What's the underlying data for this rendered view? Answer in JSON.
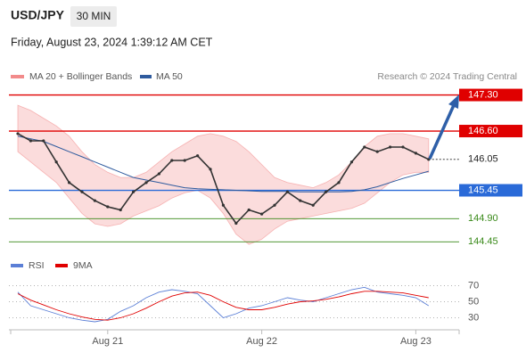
{
  "header": {
    "symbol": "USD/JPY",
    "timeframe": "30 MIN",
    "datetime": "Friday, August 23, 2024 1:39:12 AM CET"
  },
  "chart_data": [
    {
      "type": "line",
      "attribution": "Research © 2024 Trading Central",
      "ylim": [
        144.3,
        147.5
      ],
      "price": {
        "color": "#333333",
        "values": [
          146.55,
          146.41,
          146.41,
          146.0,
          145.6,
          145.42,
          145.25,
          145.13,
          145.07,
          145.42,
          145.6,
          145.77,
          146.03,
          146.03,
          146.12,
          145.86,
          145.16,
          144.81,
          145.07,
          144.99,
          145.16,
          145.42,
          145.25,
          145.16,
          145.42,
          145.6,
          146.0,
          146.29,
          146.2,
          146.29,
          146.29,
          146.17,
          146.05
        ]
      },
      "bands": {
        "name": "MA 20 + Bollinger Bands",
        "color": "#f28b8b",
        "upper": [
          147.1,
          147.0,
          146.85,
          146.7,
          146.5,
          146.2,
          145.95,
          145.8,
          145.7,
          145.7,
          145.8,
          146.0,
          146.2,
          146.35,
          146.5,
          146.55,
          146.5,
          146.4,
          146.2,
          145.95,
          145.7,
          145.6,
          145.55,
          145.5,
          145.6,
          145.75,
          146.0,
          146.3,
          146.5,
          146.55,
          146.55,
          146.5,
          146.45
        ],
        "lower": [
          146.2,
          146.0,
          145.8,
          145.6,
          145.3,
          145.0,
          144.8,
          144.75,
          144.8,
          144.95,
          145.05,
          145.15,
          145.3,
          145.4,
          145.45,
          145.3,
          145.0,
          144.6,
          144.4,
          144.5,
          144.7,
          144.85,
          144.9,
          144.95,
          145.0,
          145.05,
          145.1,
          145.2,
          145.4,
          145.6,
          145.75,
          145.8,
          145.8
        ]
      },
      "series": [
        {
          "name": "MA 50",
          "color": "#2f5b9e",
          "values": [
            146.5,
            146.45,
            146.4,
            146.3,
            146.2,
            146.1,
            146.0,
            145.9,
            145.8,
            145.7,
            145.65,
            145.6,
            145.55,
            145.5,
            145.48,
            145.47,
            145.46,
            145.45,
            145.44,
            145.43,
            145.43,
            145.43,
            145.42,
            145.42,
            145.42,
            145.42,
            145.43,
            145.46,
            145.52,
            145.6,
            145.68,
            145.75,
            145.82
          ]
        }
      ],
      "levels": [
        {
          "value": 147.3,
          "label": "147.30",
          "color": "#e00000",
          "boxed": true,
          "dotted": false
        },
        {
          "value": 146.6,
          "label": "146.60",
          "color": "#e00000",
          "boxed": true,
          "dotted": false
        },
        {
          "value": 146.05,
          "label": "146.05",
          "color": "#222222",
          "boxed": false,
          "dotted": true
        },
        {
          "value": 145.45,
          "label": "145.45",
          "color": "#2a6ad8",
          "boxed": true,
          "dotted": false
        },
        {
          "value": 144.9,
          "label": "144.90",
          "color": "#3a8a1a",
          "boxed": false,
          "dotted": false
        },
        {
          "value": 144.45,
          "label": "144.45",
          "color": "#3a8a1a",
          "boxed": false,
          "dotted": false
        }
      ]
    },
    {
      "type": "line",
      "ylim": [
        15,
        85
      ],
      "yticks": [
        30,
        50,
        70
      ],
      "categories": [
        null,
        null,
        null,
        null,
        null,
        null,
        null,
        "Aug 21",
        null,
        null,
        null,
        null,
        null,
        null,
        null,
        null,
        null,
        null,
        null,
        "Aug 22",
        null,
        null,
        null,
        null,
        null,
        null,
        null,
        null,
        null,
        null,
        null,
        "Aug 23",
        null
      ],
      "series": [
        {
          "name": "RSI",
          "color": "#5b7fd6",
          "values": [
            62,
            45,
            40,
            35,
            30,
            27,
            25,
            28,
            38,
            45,
            55,
            62,
            65,
            63,
            60,
            45,
            30,
            35,
            42,
            45,
            50,
            55,
            52,
            50,
            55,
            60,
            65,
            68,
            62,
            60,
            58,
            55,
            45
          ]
        },
        {
          "name": "9MA",
          "color": "#e00000",
          "values": [
            60,
            52,
            46,
            40,
            35,
            31,
            28,
            27,
            30,
            35,
            42,
            50,
            57,
            61,
            62,
            58,
            50,
            43,
            40,
            40,
            43,
            47,
            50,
            51,
            53,
            56,
            60,
            63,
            63,
            62,
            61,
            58,
            55
          ]
        }
      ]
    }
  ]
}
